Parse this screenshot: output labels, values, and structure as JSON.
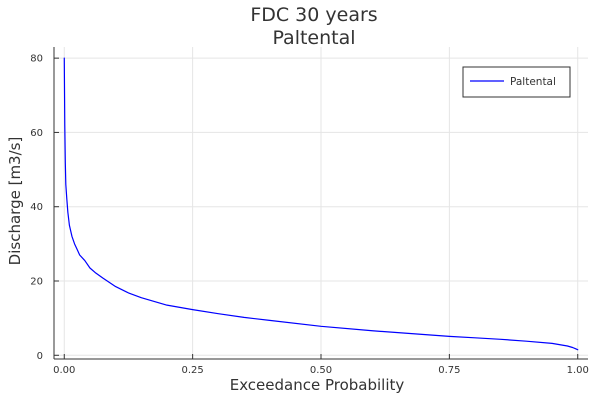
{
  "chart_data": {
    "type": "line",
    "title": "FDC 30 years",
    "subtitle": "Paltental",
    "xlabel": "Exceedance Probability",
    "ylabel": "Discharge [m3/s]",
    "xlim": [
      -0.02,
      1.02
    ],
    "ylim": [
      -1,
      83
    ],
    "x_ticks": [
      0,
      0.25,
      0.5,
      0.75,
      1
    ],
    "x_tick_labels": [
      "0.00",
      "0.25",
      "0.50",
      "0.75",
      "1.00"
    ],
    "y_ticks": [
      0,
      20,
      40,
      60,
      80
    ],
    "y_tick_labels": [
      "0",
      "20",
      "40",
      "60",
      "80"
    ],
    "grid": true,
    "legend_position": "top-right",
    "series": [
      {
        "name": "Paltental",
        "color": "#0000ff",
        "x": [
          0.0,
          0.001,
          0.002,
          0.003,
          0.005,
          0.007,
          0.01,
          0.015,
          0.02,
          0.025,
          0.03,
          0.04,
          0.05,
          0.06,
          0.075,
          0.1,
          0.125,
          0.15,
          0.2,
          0.25,
          0.3,
          0.35,
          0.4,
          0.5,
          0.6,
          0.7,
          0.75,
          0.8,
          0.85,
          0.9,
          0.95,
          0.98,
          0.99,
          0.995,
          1.0
        ],
        "y": [
          80,
          62,
          52,
          46,
          42,
          38.5,
          35,
          32,
          30,
          28.5,
          27,
          25.5,
          23.5,
          22.3,
          20.8,
          18.5,
          16.8,
          15.5,
          13.5,
          12.3,
          11.2,
          10.2,
          9.4,
          7.8,
          6.6,
          5.6,
          5.1,
          4.7,
          4.3,
          3.8,
          3.2,
          2.5,
          2.1,
          1.8,
          1.5
        ]
      }
    ]
  }
}
